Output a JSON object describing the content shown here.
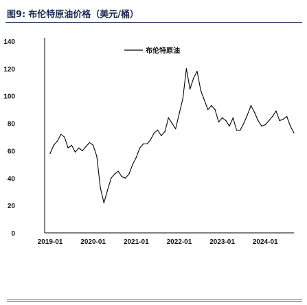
{
  "header": {
    "figure_label": "图9:",
    "title": "布伦特原油价格（美元/桶）"
  },
  "colors": {
    "header_text": "#1b2a55",
    "series_line": "#000000",
    "axis": "#000000"
  },
  "chart_data": {
    "type": "line",
    "title": "",
    "xlabel": "",
    "ylabel": "",
    "ylim": [
      0,
      140
    ],
    "yticks": [
      0,
      20,
      40,
      60,
      80,
      100,
      120,
      140
    ],
    "xticks": [
      "2019-01",
      "2020-01",
      "2021-01",
      "2022-01",
      "2023-01",
      "2024-01"
    ],
    "grid": false,
    "legend_position": "top-center",
    "series": [
      {
        "name": "布伦特原油",
        "x": [
          "2019-01",
          "2019-02",
          "2019-03",
          "2019-04",
          "2019-05",
          "2019-06",
          "2019-07",
          "2019-08",
          "2019-09",
          "2019-10",
          "2019-11",
          "2019-12",
          "2020-01",
          "2020-02",
          "2020-03",
          "2020-04",
          "2020-05",
          "2020-06",
          "2020-07",
          "2020-08",
          "2020-09",
          "2020-10",
          "2020-11",
          "2020-12",
          "2021-01",
          "2021-02",
          "2021-03",
          "2021-04",
          "2021-05",
          "2021-06",
          "2021-07",
          "2021-08",
          "2021-09",
          "2021-10",
          "2021-11",
          "2021-12",
          "2022-01",
          "2022-02",
          "2022-03",
          "2022-04",
          "2022-05",
          "2022-06",
          "2022-07",
          "2022-08",
          "2022-09",
          "2022-10",
          "2022-11",
          "2022-12",
          "2023-01",
          "2023-02",
          "2023-03",
          "2023-04",
          "2023-05",
          "2023-06",
          "2023-07",
          "2023-08",
          "2023-09",
          "2023-10",
          "2023-11",
          "2023-12",
          "2024-01",
          "2024-02",
          "2024-03",
          "2024-04",
          "2024-05",
          "2024-06",
          "2024-07",
          "2024-08",
          "2024-09"
        ],
        "values": [
          58,
          64,
          67,
          72,
          70,
          62,
          64,
          59,
          62,
          60,
          63,
          66,
          64,
          56,
          33,
          22,
          31,
          40,
          43,
          45,
          41,
          40,
          43,
          50,
          55,
          62,
          65,
          65,
          68,
          73,
          75,
          71,
          74,
          84,
          80,
          76,
          87,
          98,
          120,
          105,
          113,
          118,
          104,
          97,
          90,
          93,
          90,
          81,
          84,
          82,
          78,
          84,
          75,
          75,
          80,
          86,
          93,
          88,
          82,
          78,
          79,
          82,
          85,
          89,
          82,
          83,
          85,
          78,
          73
        ]
      }
    ]
  }
}
